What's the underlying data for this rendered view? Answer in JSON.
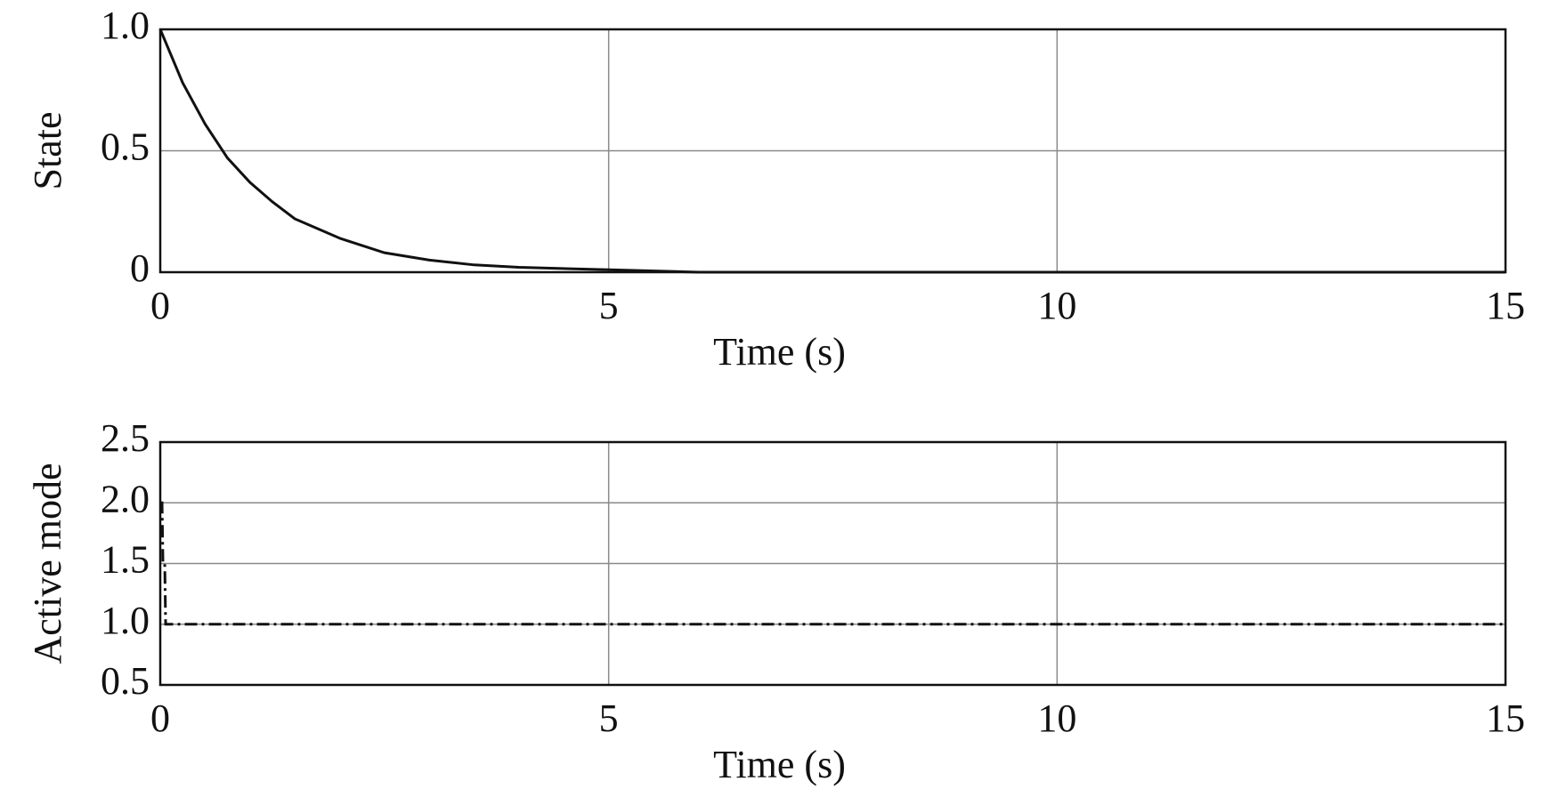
{
  "chart_data": [
    {
      "type": "line",
      "ylabel": "State",
      "xlabel": "Time (s)",
      "xlim": [
        0,
        15
      ],
      "xticks": [
        0,
        5,
        10,
        15
      ],
      "ylim": [
        0,
        1
      ],
      "yticks": [
        0,
        0.5,
        {
          "value": 1,
          "label": "1.0"
        }
      ],
      "grid": true,
      "series": [
        {
          "color": "#111111",
          "line_style": "solid",
          "x": [
            0,
            0.25,
            0.5,
            0.75,
            1,
            1.25,
            1.5,
            2,
            2.5,
            3,
            3.5,
            4,
            5,
            6,
            7,
            8,
            10,
            12,
            15
          ],
          "values": [
            1,
            0.78,
            0.61,
            0.47,
            0.37,
            0.29,
            0.22,
            0.14,
            0.08,
            0.05,
            0.03,
            0.02,
            0.01,
            0,
            0,
            0,
            0,
            0,
            0
          ]
        }
      ]
    },
    {
      "type": "line",
      "ylabel": "Active mode",
      "xlabel": "Time (s)",
      "xlim": [
        0,
        15
      ],
      "xticks": [
        0,
        5,
        10,
        15
      ],
      "ylim": [
        0.5,
        2.5
      ],
      "yticks": [
        0.5,
        {
          "value": 1,
          "label": "1.0"
        },
        1.5,
        {
          "value": 2,
          "label": "2.0"
        },
        2.5
      ],
      "grid": true,
      "series": [
        {
          "color": "#111111",
          "line_style": "dashdot",
          "x": [
            0,
            0.02,
            0.03,
            0.05,
            0.06,
            15
          ],
          "values": [
            2,
            2,
            1.5,
            1.5,
            1,
            1
          ]
        }
      ]
    }
  ]
}
